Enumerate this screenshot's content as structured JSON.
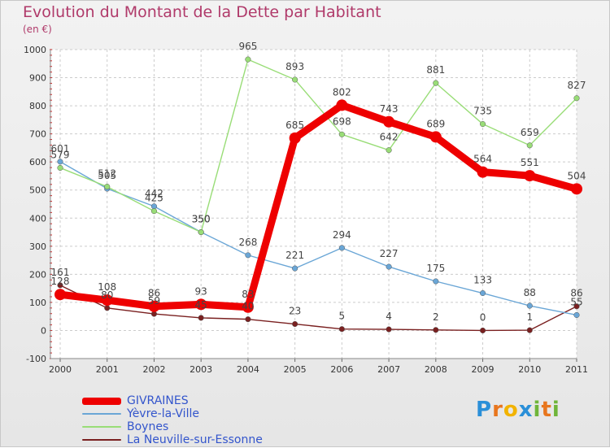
{
  "title": "Evolution du Montant de la Dette par Habitant",
  "subtitle": "(en €)",
  "brand": {
    "letters": [
      "P",
      "r",
      "o",
      "x",
      "i",
      "t",
      "i"
    ],
    "colors": [
      "#2a8fd8",
      "#e8761e",
      "#f2b300",
      "#2a8fd8",
      "#6fb53a",
      "#e8761e",
      "#6fb53a"
    ]
  },
  "chart_data": {
    "type": "line",
    "x": [
      "2000",
      "2001",
      "2002",
      "2003",
      "2004",
      "2005",
      "2006",
      "2007",
      "2008",
      "2009",
      "2010",
      "2011"
    ],
    "ylim": [
      -100,
      1000
    ],
    "yticks": [
      "-100",
      "0",
      "100",
      "200",
      "300",
      "400",
      "500",
      "600",
      "700",
      "800",
      "900",
      "1000"
    ],
    "grid": true,
    "legend_position": "bottom-left",
    "series": [
      {
        "name": "GIVRAINES",
        "color": "#ee0000",
        "values": [
          128,
          108,
          86,
          93,
          83,
          685,
          802,
          743,
          689,
          564,
          551,
          504
        ],
        "labels": [
          "128",
          "108",
          "86",
          "93",
          "83",
          "685",
          "802",
          "743",
          "689",
          "564",
          "551",
          "504"
        ]
      },
      {
        "name": "Yèvre-la-Ville",
        "color": "#6aa6d6",
        "values": [
          601,
          505,
          442,
          350,
          268,
          221,
          294,
          227,
          175,
          133,
          88,
          55
        ],
        "labels": [
          "601",
          "505",
          "442",
          "350",
          "268",
          "221",
          "294",
          "227",
          "175",
          "133",
          "88",
          "55"
        ]
      },
      {
        "name": "Boynes",
        "color": "#99dd77",
        "values": [
          579,
          512,
          425,
          350,
          965,
          893,
          698,
          642,
          881,
          735,
          659,
          827
        ],
        "labels": [
          "579",
          "512",
          "425",
          "350",
          "965",
          "893",
          "698",
          "642",
          "881",
          "735",
          "659",
          "827"
        ]
      },
      {
        "name": "La Neuville-sur-Essonne",
        "color": "#7a2020",
        "values": [
          161,
          80,
          59,
          45,
          40,
          23,
          5,
          4,
          2,
          0,
          1,
          86
        ],
        "labels": [
          "161",
          "80",
          "59",
          "45",
          "40",
          "23",
          "5",
          "4",
          "2",
          "0",
          "1",
          "86"
        ]
      }
    ]
  }
}
